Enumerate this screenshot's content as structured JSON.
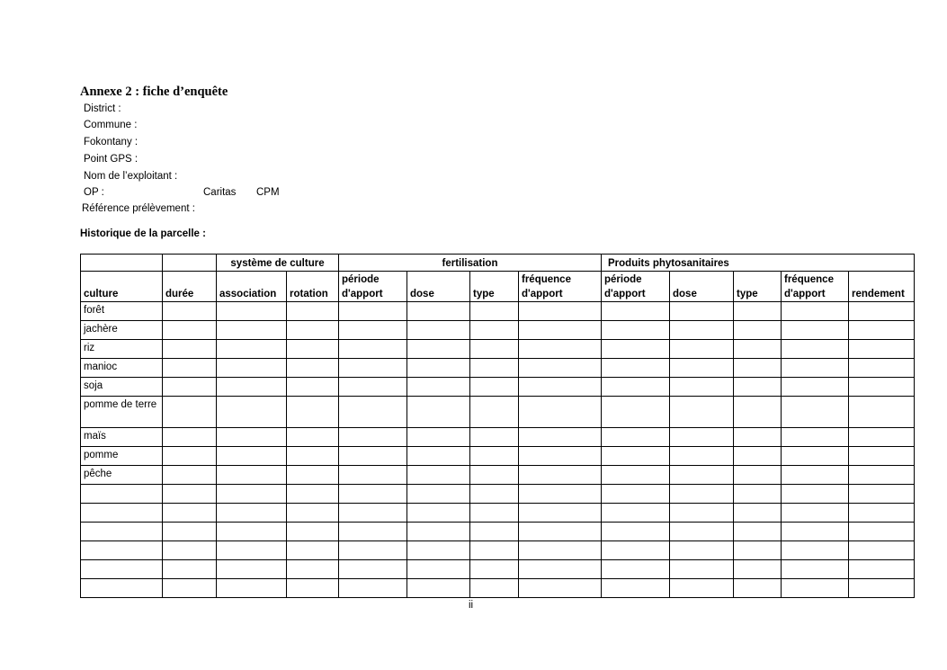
{
  "title": "Annexe 2 : fiche d’enquête",
  "fields": [
    "District :",
    "Commune :",
    "Fokontany :",
    "Point GPS :",
    "Nom de l’exploitant :",
    "OP :",
    "Référence prélèvement :"
  ],
  "op_options": [
    "Caritas",
    "CPM"
  ],
  "history_label": "Historique de la parcelle :",
  "table": {
    "groups": {
      "systeme": "système de culture",
      "fertilisation": "fertilisation",
      "produits": "Produits phytosanitaires"
    },
    "columns": [
      "culture",
      "durée",
      "association",
      "rotation",
      "période d'apport",
      "dose",
      "type",
      "fréquence d'apport",
      "période d'apport",
      "dose",
      "type",
      "fréquence d'apport",
      "rendement"
    ],
    "rows": [
      "forêt",
      "jachère",
      "riz",
      "manioc",
      "soja",
      "pomme de terre",
      "maïs",
      "pomme",
      "pêche",
      "",
      "",
      "",
      "",
      "",
      ""
    ]
  },
  "page_number": "ii"
}
